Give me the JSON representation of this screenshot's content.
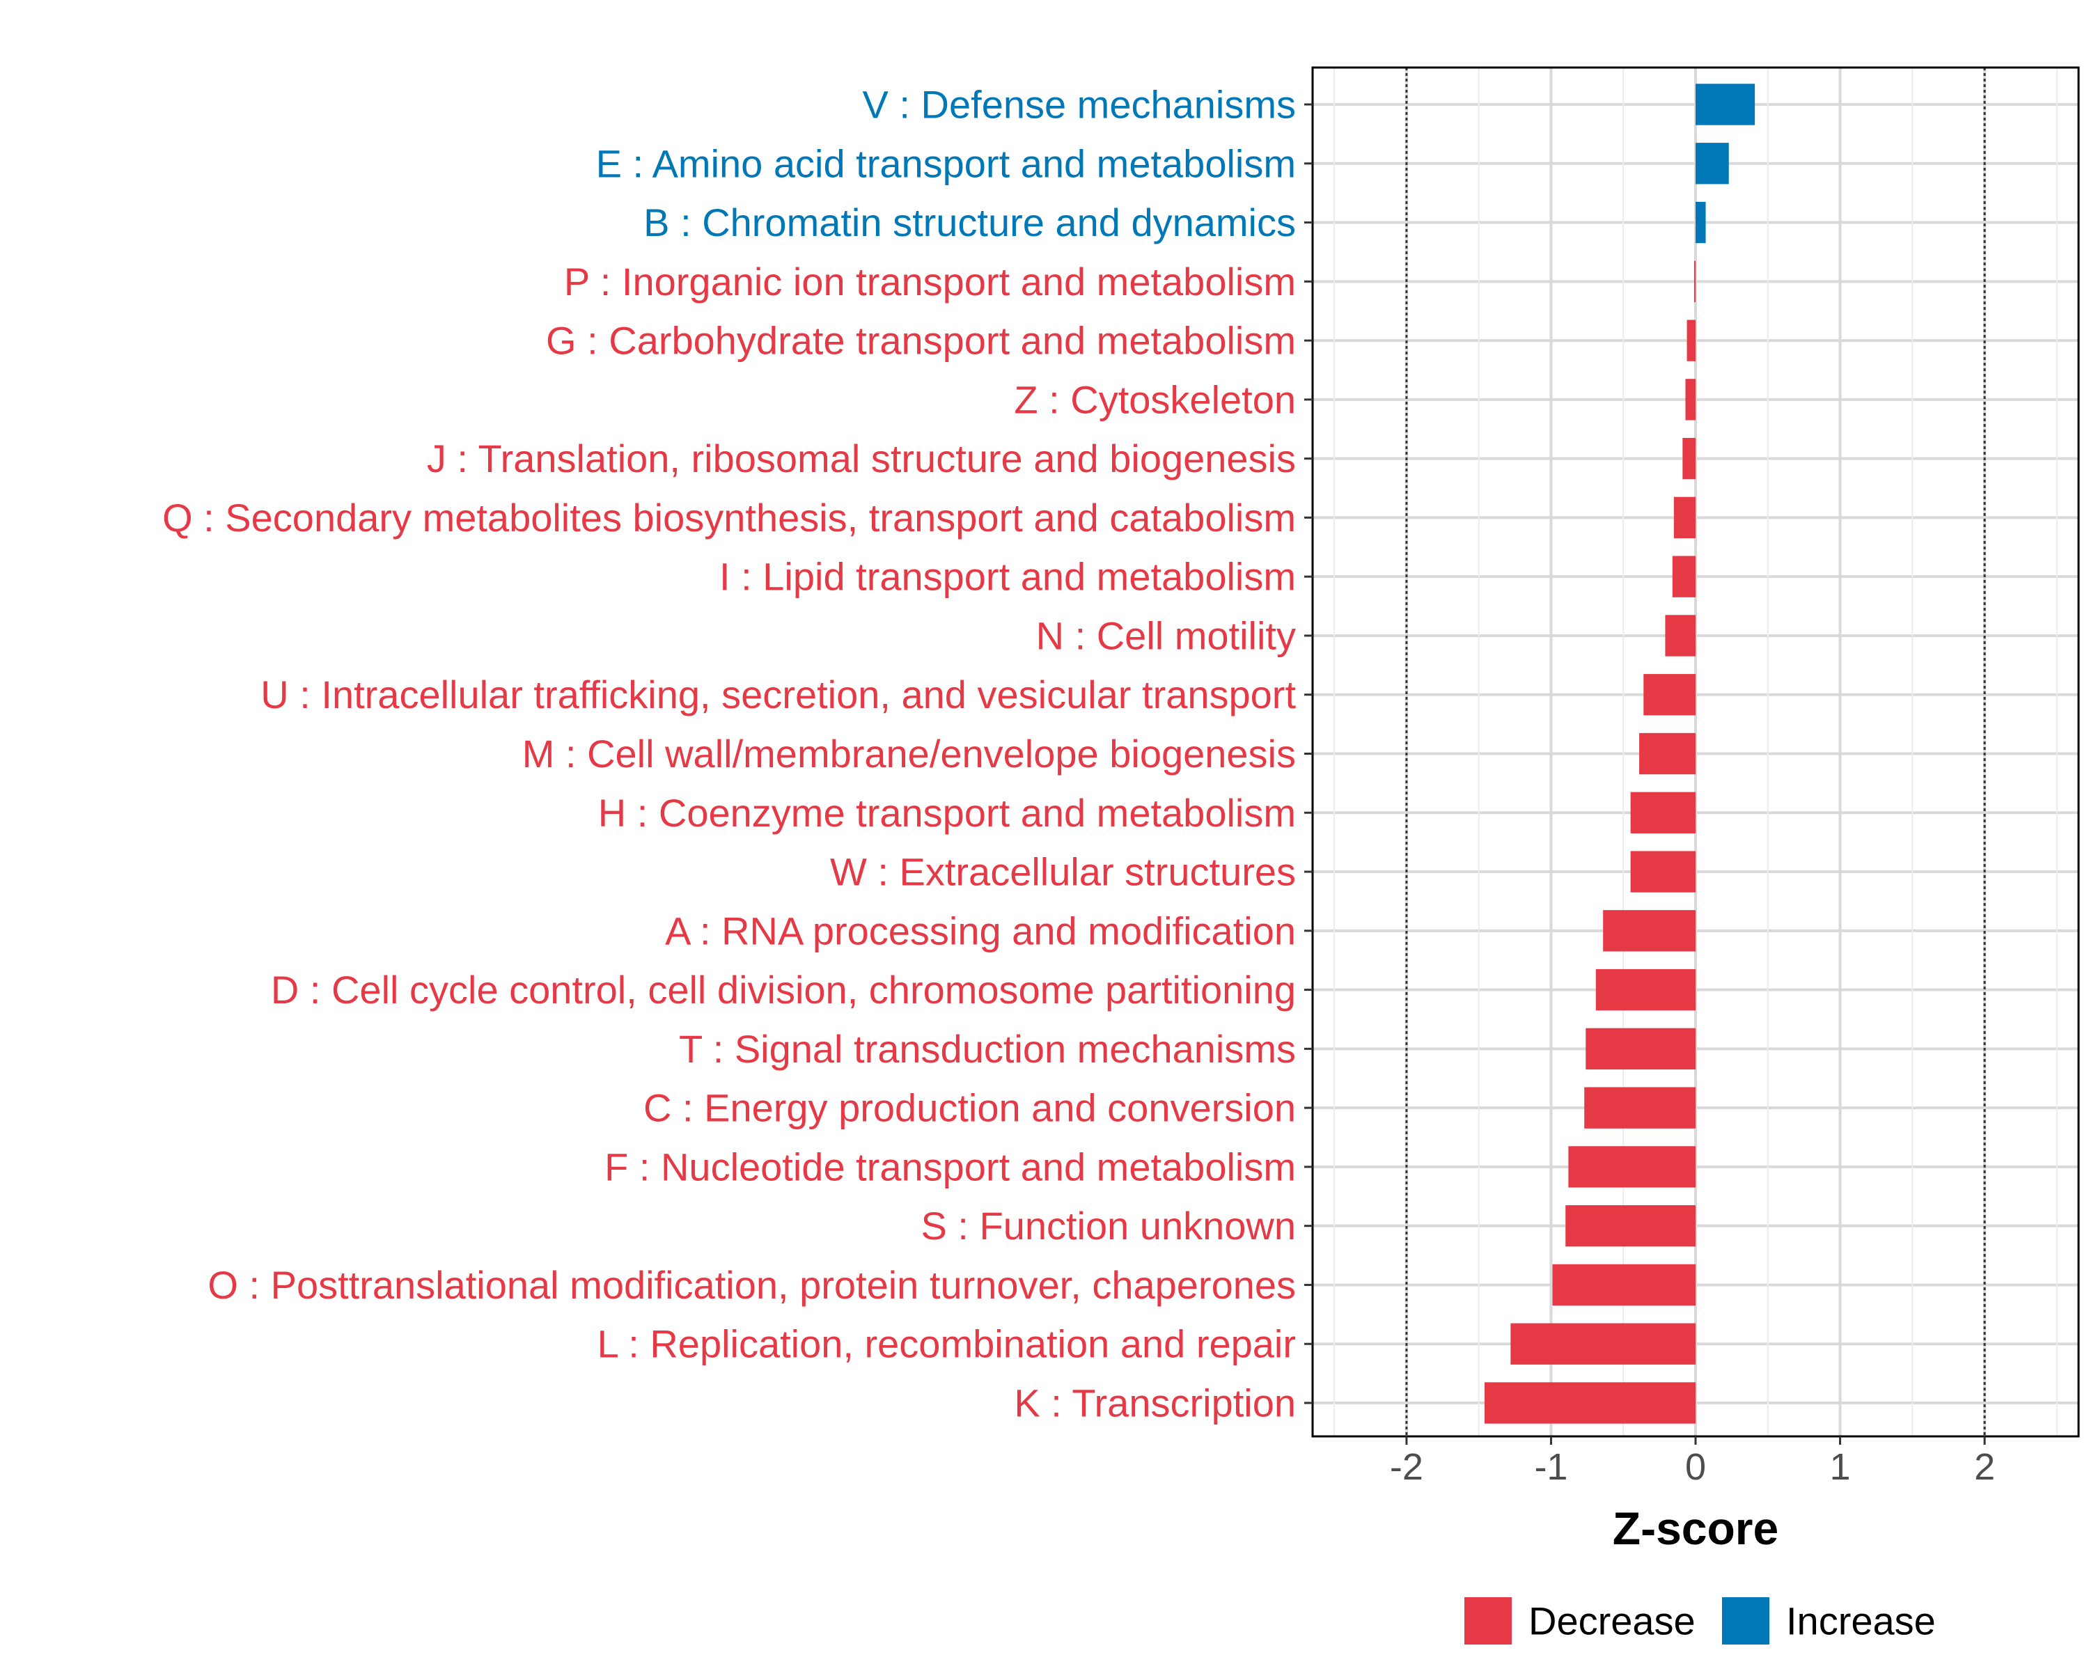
{
  "chart_data": {
    "type": "bar",
    "orientation": "horizontal",
    "title": "",
    "xlabel": "Z-score",
    "ylabel": "",
    "xlim": [
      -2.65,
      2.65
    ],
    "xticks": [
      -2,
      -1,
      0,
      1,
      2
    ],
    "xtick_labels": [
      "-2",
      "-1",
      "0",
      "1",
      "2"
    ],
    "reference_lines": [
      -2,
      2
    ],
    "grid": true,
    "legend_position": "bottom",
    "colors": {
      "Decrease": "#E63946",
      "Increase": "#0077B6"
    },
    "legend": [
      {
        "label": "Decrease",
        "color": "#E63946"
      },
      {
        "label": "Increase",
        "color": "#0077B6"
      }
    ],
    "categories": [
      "V : Defense mechanisms",
      "E : Amino acid transport and metabolism",
      "B : Chromatin structure and dynamics",
      "P : Inorganic ion transport and metabolism",
      "G : Carbohydrate transport and metabolism",
      "Z : Cytoskeleton",
      "J : Translation, ribosomal structure and biogenesis",
      "Q : Secondary metabolites biosynthesis, transport and catabolism",
      "I : Lipid transport and metabolism",
      "N : Cell motility",
      "U : Intracellular trafficking, secretion, and vesicular transport",
      "M : Cell wall/membrane/envelope biogenesis",
      "H : Coenzyme transport and metabolism",
      "W : Extracellular structures",
      "A : RNA processing and modification",
      "D : Cell cycle control, cell division, chromosome partitioning",
      "T : Signal transduction mechanisms",
      "C : Energy production and conversion",
      "F : Nucleotide transport and metabolism",
      "S : Function unknown",
      "O : Posttranslational modification, protein turnover, chaperones",
      "L : Replication, recombination and repair",
      "K : Transcription"
    ],
    "values": [
      0.41,
      0.23,
      0.07,
      -0.01,
      -0.06,
      -0.07,
      -0.09,
      -0.15,
      -0.16,
      -0.21,
      -0.36,
      -0.39,
      -0.45,
      -0.45,
      -0.64,
      -0.69,
      -0.76,
      -0.77,
      -0.88,
      -0.9,
      -0.99,
      -1.28,
      -1.46
    ],
    "groups": [
      "Increase",
      "Increase",
      "Increase",
      "Decrease",
      "Decrease",
      "Decrease",
      "Decrease",
      "Decrease",
      "Decrease",
      "Decrease",
      "Decrease",
      "Decrease",
      "Decrease",
      "Decrease",
      "Decrease",
      "Decrease",
      "Decrease",
      "Decrease",
      "Decrease",
      "Decrease",
      "Decrease",
      "Decrease",
      "Decrease"
    ]
  }
}
